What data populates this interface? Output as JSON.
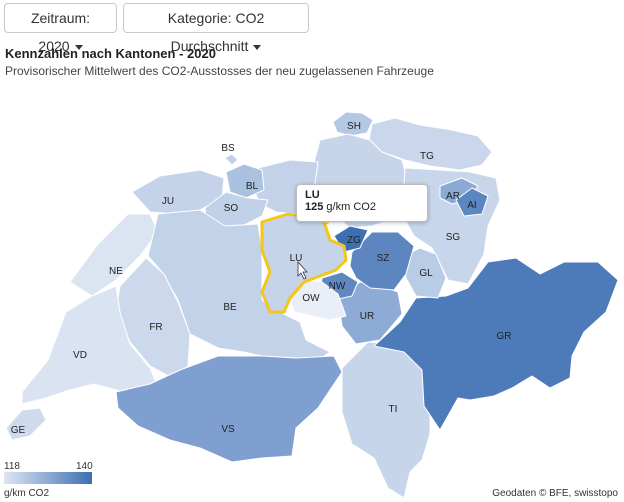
{
  "controls": {
    "period_label": "Zeitraum: 2020",
    "category_label": "Kategorie: CO2 Durchschnitt"
  },
  "header": {
    "title": "Kennzahlen nach Kantonen - 2020",
    "subtitle": "Provisorischer Mittelwert des CO2-Ausstosses der neu zugelassenen Fahrzeuge"
  },
  "legend": {
    "min": "118",
    "max": "140",
    "unit": "g/km CO2"
  },
  "tooltip": {
    "canton": "LU",
    "value": "125",
    "unit": "g/km CO2"
  },
  "credit": "Geodaten © BFE, swisstopo",
  "colors": {
    "low": "#dde6f2",
    "high": "#3d6fb3",
    "highlight": "#f5c518"
  },
  "cantons": [
    {
      "code": "SH",
      "label": "SH"
    },
    {
      "code": "BS",
      "label": "BS"
    },
    {
      "code": "TG",
      "label": "TG"
    },
    {
      "code": "BL",
      "label": "BL"
    },
    {
      "code": "JU",
      "label": "JU"
    },
    {
      "code": "SO",
      "label": "SO"
    },
    {
      "code": "AR",
      "label": "AR"
    },
    {
      "code": "AI",
      "label": "AI"
    },
    {
      "code": "ZG",
      "label": "ZG"
    },
    {
      "code": "SG",
      "label": "SG"
    },
    {
      "code": "LU",
      "label": "LU"
    },
    {
      "code": "SZ",
      "label": "SZ"
    },
    {
      "code": "NE",
      "label": "NE"
    },
    {
      "code": "GL",
      "label": "GL"
    },
    {
      "code": "NW",
      "label": "NW"
    },
    {
      "code": "OW",
      "label": "OW"
    },
    {
      "code": "BE",
      "label": "BE"
    },
    {
      "code": "FR",
      "label": "FR"
    },
    {
      "code": "UR",
      "label": "UR"
    },
    {
      "code": "GR",
      "label": "GR"
    },
    {
      "code": "VD",
      "label": "VD"
    },
    {
      "code": "TI",
      "label": "TI"
    },
    {
      "code": "VS",
      "label": "VS"
    },
    {
      "code": "GE",
      "label": "GE"
    }
  ]
}
